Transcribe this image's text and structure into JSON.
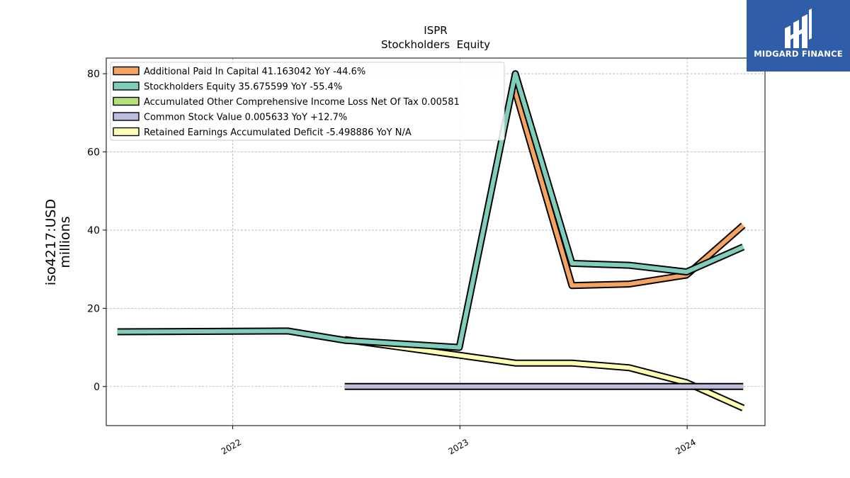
{
  "chart_data": {
    "type": "line",
    "title": "ISPR",
    "subtitle": "Stockholders  Equity",
    "ylabel": "iso4217:USD\nmillions",
    "xlabel": "",
    "ylim": [
      -10,
      84
    ],
    "xlim": [
      "2021-06-12",
      "2024-05-05"
    ],
    "yticks": [
      0,
      20,
      40,
      60,
      80
    ],
    "xticks": [
      {
        "label": "2022",
        "date": "2022-01-01"
      },
      {
        "label": "2023",
        "date": "2023-01-01"
      },
      {
        "label": "2024",
        "date": "2024-01-01"
      }
    ],
    "grid": true,
    "legend_position": "top-left",
    "series": [
      {
        "name": "Additional Paid In Capital",
        "legend": "Additional Paid In Capital  41.163042 YoY -44.6%",
        "color": "#f4a460",
        "points": [
          [
            "2023-03-31",
            75.5
          ],
          [
            "2023-06-30",
            25.8
          ],
          [
            "2023-09-30",
            26.2
          ],
          [
            "2023-12-31",
            28.5
          ],
          [
            "2024-03-31",
            41.2
          ]
        ]
      },
      {
        "name": "Stockholders Equity",
        "legend": "Stockholders Equity  35.675599 YoY -55.4%",
        "color": "#7fcdbb",
        "points": [
          [
            "2021-06-30",
            14.0
          ],
          [
            "2022-03-31",
            14.2
          ],
          [
            "2022-06-30",
            11.8
          ],
          [
            "2022-12-31",
            10.0
          ],
          [
            "2023-03-31",
            80.0
          ],
          [
            "2023-06-30",
            31.5
          ],
          [
            "2023-09-30",
            31.0
          ],
          [
            "2023-12-31",
            29.3
          ],
          [
            "2024-03-31",
            35.7
          ]
        ]
      },
      {
        "name": "Accumulated Other Comprehensive Income Loss Net Of Tax",
        "legend": "Accumulated Other Comprehensive Income Loss Net Of Tax  0.00581",
        "color": "#b5e07a",
        "points": []
      },
      {
        "name": "Common Stock Value",
        "legend": "Common Stock Value  0.005633 YoY +12.7%",
        "color": "#bcbddc",
        "points": [
          [
            "2022-06-30",
            0.0
          ],
          [
            "2023-06-30",
            0.0
          ],
          [
            "2024-03-31",
            0.006
          ]
        ]
      },
      {
        "name": "Retained Earnings Accumulated Deficit",
        "legend": "Retained Earnings Accumulated Deficit  -5.498886 YoY N/A",
        "color": "#ffffb3",
        "points": [
          [
            "2022-06-30",
            12.0
          ],
          [
            "2022-09-30",
            10.0
          ],
          [
            "2022-12-31",
            8.0
          ],
          [
            "2023-03-31",
            6.0
          ],
          [
            "2023-06-30",
            6.0
          ],
          [
            "2023-09-30",
            4.8
          ],
          [
            "2023-12-31",
            1.0
          ],
          [
            "2024-03-31",
            -5.5
          ]
        ]
      }
    ]
  },
  "logo": {
    "text": "MIDGARD FINANCE",
    "color": "#2f5daa"
  }
}
